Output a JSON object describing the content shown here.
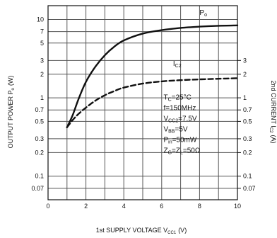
{
  "chart_data": {
    "type": "line",
    "xlabel": "1st SUPPLY VOLTAGE V",
    "xlabel_sub": "CC1",
    "xlabel_unit": "(V)",
    "ylabel": "OUTPUT POWER P",
    "ylabel_sub": "o",
    "ylabel_unit": "(W)",
    "y2label": "2nd CURRENT I",
    "y2label_sub": "C2",
    "y2label_unit": "(A)",
    "xlim": [
      0,
      10
    ],
    "ylim": [
      0.05,
      15
    ],
    "y_scale": "log",
    "x_ticks": [
      "0",
      "2",
      "4",
      "6",
      "8",
      "10"
    ],
    "y_ticks": [
      {
        "v": 10,
        "label": "10"
      },
      {
        "v": 7,
        "label": "7"
      },
      {
        "v": 5,
        "label": "5"
      },
      {
        "v": 3,
        "label": "3"
      },
      {
        "v": 2,
        "label": "2"
      },
      {
        "v": 1,
        "label": "1"
      },
      {
        "v": 0.7,
        "label": "0.7"
      },
      {
        "v": 0.5,
        "label": "0.5"
      },
      {
        "v": 0.3,
        "label": "0.3"
      },
      {
        "v": 0.2,
        "label": "0.2"
      },
      {
        "v": 0.1,
        "label": "0.1"
      },
      {
        "v": 0.07,
        "label": "0.07"
      }
    ],
    "y2_ticks": [
      {
        "v": 3,
        "label": "3"
      },
      {
        "v": 2,
        "label": "2"
      },
      {
        "v": 1,
        "label": "1"
      },
      {
        "v": 0.7,
        "label": "0.7"
      },
      {
        "v": 0.5,
        "label": "0.5"
      },
      {
        "v": 0.3,
        "label": "0.3"
      },
      {
        "v": 0.2,
        "label": "0.2"
      },
      {
        "v": 0.1,
        "label": "0.1"
      },
      {
        "v": 0.07,
        "label": "0.07"
      }
    ],
    "grid": true,
    "series": [
      {
        "name": "P",
        "name_sub": "o",
        "style": "solid",
        "x": [
          1.0,
          1.3,
          1.6,
          2.0,
          2.5,
          3.0,
          3.5,
          4.0,
          5.0,
          6.0,
          7.0,
          8.0,
          9.0,
          10.0
        ],
        "values": [
          0.42,
          0.6,
          0.95,
          1.6,
          2.5,
          3.5,
          4.5,
          5.4,
          6.6,
          7.3,
          7.8,
          8.1,
          8.3,
          8.4
        ]
      },
      {
        "name": "I",
        "name_sub": "C2",
        "style": "dashed",
        "x": [
          1.0,
          1.3,
          1.6,
          2.0,
          2.5,
          3.0,
          3.5,
          4.0,
          5.0,
          6.0,
          7.0,
          8.0,
          9.0,
          10.0
        ],
        "values": [
          0.42,
          0.52,
          0.62,
          0.75,
          0.92,
          1.08,
          1.22,
          1.35,
          1.52,
          1.62,
          1.68,
          1.72,
          1.75,
          1.78
        ]
      }
    ],
    "conditions": [
      {
        "main": "T",
        "sub": "C",
        "rest": "=25°C"
      },
      {
        "main": "f=150MHz",
        "sub": "",
        "rest": ""
      },
      {
        "main": "V",
        "sub": "CC2",
        "rest": "=7.5V"
      },
      {
        "main": "V",
        "sub": "BB",
        "rest": "=5V"
      },
      {
        "main": "P",
        "sub": "in",
        "rest": "=50mW"
      },
      {
        "main": "Z",
        "sub": "G",
        "rest": "=Z"
      },
      {
        "main": "",
        "sub": "L",
        "rest": "=50Ω"
      }
    ]
  }
}
